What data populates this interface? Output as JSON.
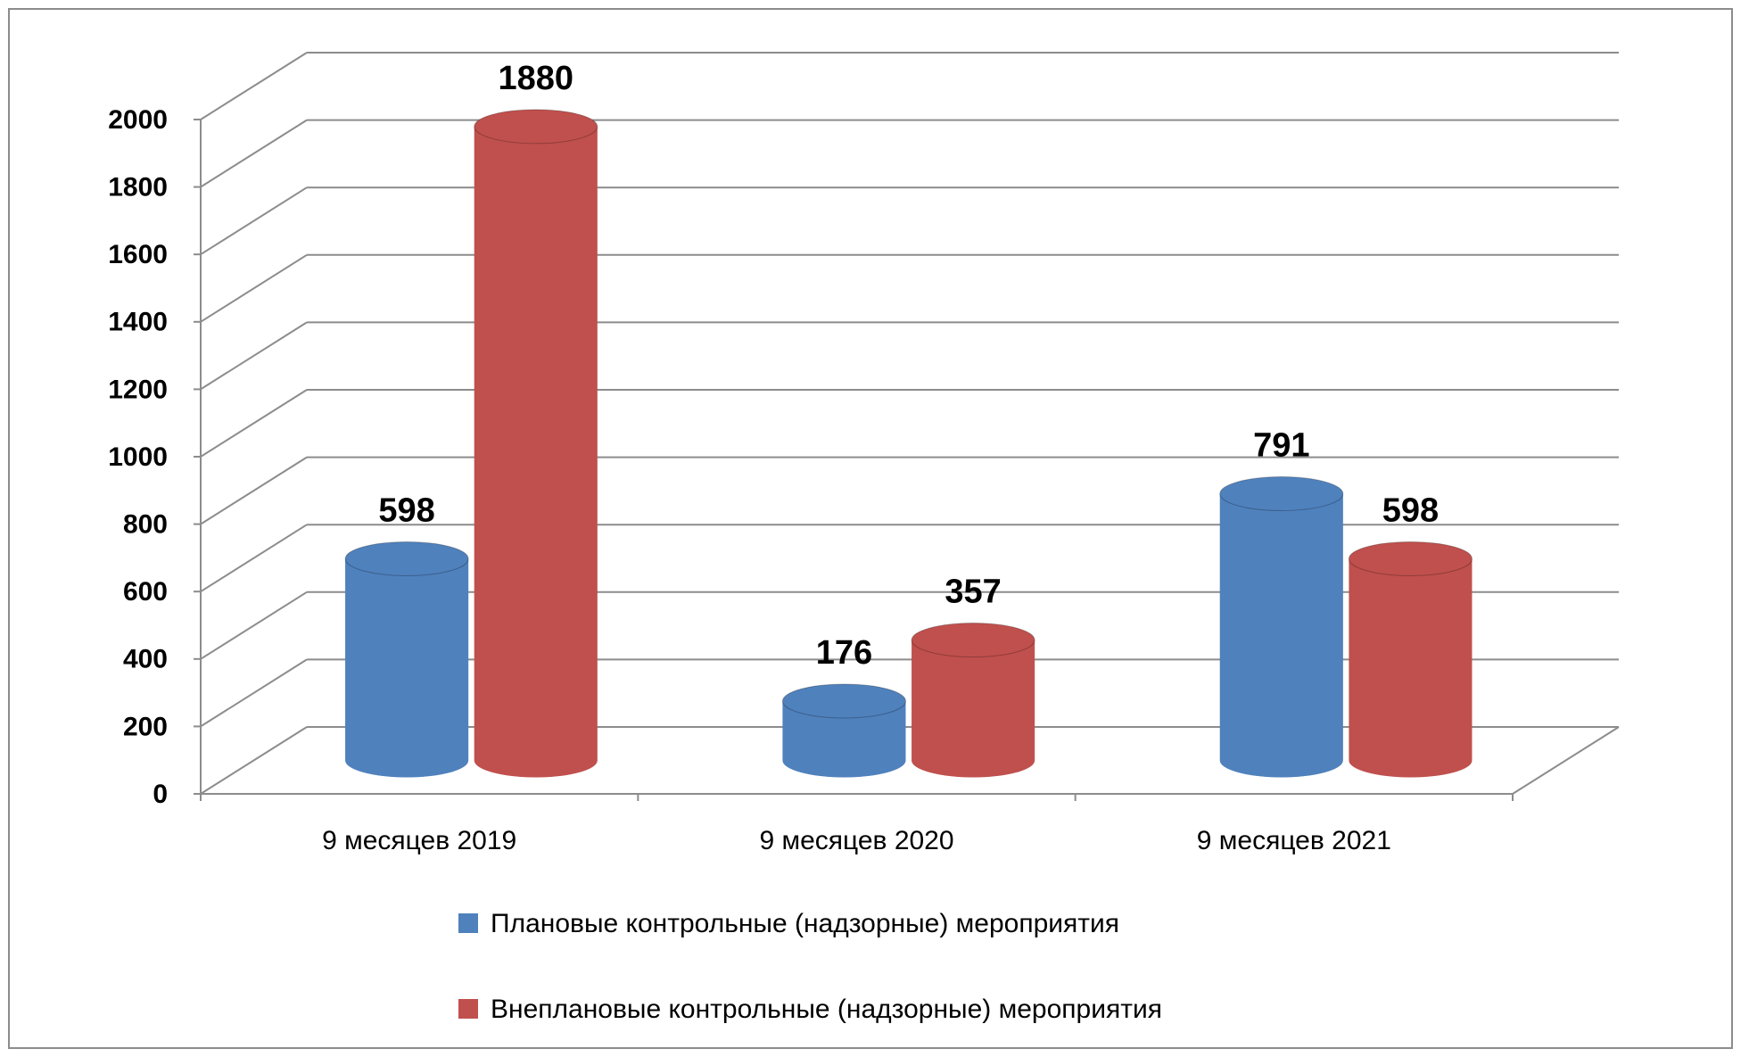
{
  "chart_data": {
    "type": "bar",
    "categories": [
      "9 месяцев 2019",
      "9 месяцев 2020",
      "9 месяцев 2021"
    ],
    "series": [
      {
        "name": "Плановые контрольные (надзорные) мероприятия",
        "color": "#4f81bd",
        "values": [
          598,
          176,
          791
        ]
      },
      {
        "name": "Внеплановые контрольные (надзорные) мероприятия",
        "color": "#c0504d",
        "values": [
          1880,
          357,
          598
        ]
      }
    ],
    "ylim": [
      0,
      2000
    ],
    "yticks": [
      0,
      200,
      400,
      600,
      800,
      1000,
      1200,
      1400,
      1600,
      1800,
      2000
    ],
    "grid": true
  }
}
